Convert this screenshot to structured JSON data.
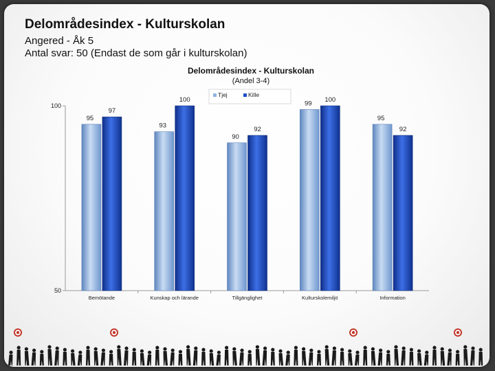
{
  "slide": {
    "title": "Delområdesindex - Kulturskolan",
    "subtitle_1": "Angered - Åk 5",
    "subtitle_2": "Antal svar: 50 (Endast de som går i kulturskolan)"
  },
  "chart_data": {
    "type": "bar",
    "title": "Delområdesindex  - Kulturskolan",
    "subtitle": "(Andel 3-4)",
    "categories": [
      "Bemötande",
      "Kunskap och lärande",
      "Tillgänglighet",
      "Kulturskolemiljö",
      "Information"
    ],
    "series": [
      {
        "name": "Tjej",
        "values": [
          95,
          93,
          90,
          99,
          95
        ],
        "color": "#8fb4e0"
      },
      {
        "name": "Kille",
        "values": [
          97,
          100,
          92,
          100,
          92
        ],
        "color": "#1f4fc4"
      }
    ],
    "ylim": [
      50,
      100
    ],
    "yticks": [
      50,
      100
    ],
    "legend": "top-right",
    "grid": false
  },
  "decor": {
    "footer": "silhouette-crowd"
  }
}
